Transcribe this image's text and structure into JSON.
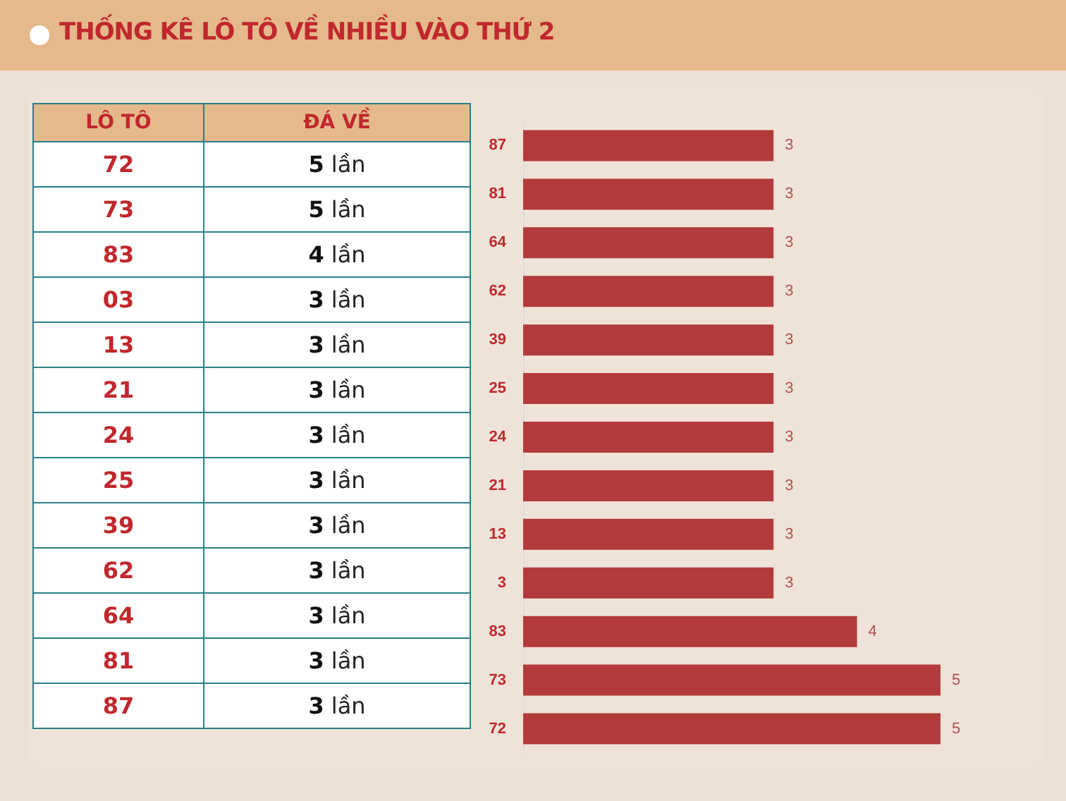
{
  "chart_data": [
    {
      "type": "other",
      "title": "THỐNG KÊ LÔ TÔ VỀ NHIỀU VÀO THỨ 2",
      "annotations": [
        "LÔ TÔ",
        "ĐÁ VỀ"
      ],
      "categories": [
        "72",
        "73",
        "83",
        "03",
        "13",
        "21",
        "24",
        "25",
        "39",
        "62",
        "64",
        "81",
        "87"
      ],
      "values": [
        5,
        5,
        4,
        3,
        3,
        3,
        3,
        3,
        3,
        3,
        3,
        3,
        3
      ],
      "value_labels": [
        "5 lần",
        "5 lần",
        "4 lần",
        "3 lần",
        "3 lần",
        "3 lần",
        "3 lần",
        "3 lần",
        "3 lần",
        "3 lần",
        "3 lần",
        "3 lần",
        "3 lần"
      ]
    },
    {
      "type": "bar",
      "orientation": "horizontal",
      "color": "#b33a3a",
      "data_labels": true,
      "tick_labels": "y",
      "categories": [
        "87",
        "81",
        "64",
        "62",
        "39",
        "25",
        "24",
        "21",
        "13",
        "3",
        "83",
        "73",
        "72"
      ],
      "values": [
        3,
        3,
        3,
        3,
        3,
        3,
        3,
        3,
        3,
        3,
        4,
        5,
        5
      ]
    }
  ]
}
